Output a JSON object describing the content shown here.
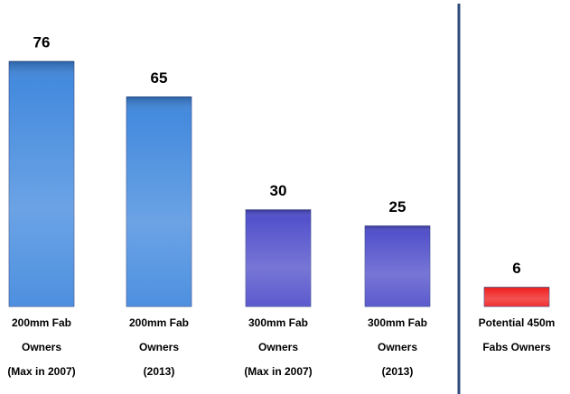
{
  "chart_data": {
    "type": "bar",
    "categories": [
      [
        "200mm Fab",
        "Owners",
        "(Max in 2007)"
      ],
      [
        "200mm Fab",
        "Owners",
        "(2013)"
      ],
      [
        "300mm Fab",
        "Owners",
        "(Max in 2007)"
      ],
      [
        "300mm Fab",
        "Owners",
        "(2013)"
      ],
      [
        "Potential 450m",
        "Fabs Owners"
      ]
    ],
    "values": [
      76,
      65,
      30,
      25,
      6
    ],
    "colors": [
      "#3a84dc",
      "#3a84dc",
      "#4a48c8",
      "#4a48c8",
      "#f01818"
    ]
  }
}
